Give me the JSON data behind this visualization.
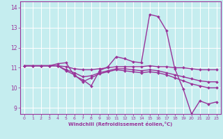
{
  "xlabel": "Windchill (Refroidissement éolien,°C)",
  "xlim": [
    -0.5,
    23.5
  ],
  "ylim": [
    8.7,
    14.3
  ],
  "yticks": [
    9,
    10,
    11,
    12,
    13,
    14
  ],
  "xticks": [
    0,
    1,
    2,
    3,
    4,
    5,
    6,
    7,
    8,
    9,
    10,
    11,
    12,
    13,
    14,
    15,
    16,
    17,
    18,
    19,
    20,
    21,
    22,
    23
  ],
  "bg_color": "#c5edef",
  "line_color": "#993399",
  "grid_color": "#aadddd",
  "line_width": 1.0,
  "marker": "D",
  "marker_size": 2.0,
  "series": [
    [
      11.1,
      11.1,
      11.1,
      11.1,
      11.2,
      11.25,
      10.6,
      10.4,
      10.1,
      10.85,
      11.05,
      11.55,
      11.45,
      11.3,
      11.25,
      13.65,
      13.55,
      12.85,
      10.95,
      9.95,
      8.7,
      9.35,
      9.2,
      9.3
    ],
    [
      11.1,
      11.1,
      11.1,
      11.1,
      11.1,
      11.05,
      10.95,
      10.9,
      10.9,
      10.95,
      11.0,
      11.05,
      11.05,
      11.05,
      11.05,
      11.1,
      11.05,
      11.05,
      11.0,
      11.0,
      10.95,
      10.9,
      10.9,
      10.9
    ],
    [
      11.1,
      11.1,
      11.1,
      11.1,
      11.1,
      10.9,
      10.75,
      10.55,
      10.6,
      10.75,
      10.85,
      10.95,
      10.95,
      10.9,
      10.85,
      10.9,
      10.85,
      10.75,
      10.65,
      10.55,
      10.45,
      10.35,
      10.3,
      10.3
    ],
    [
      11.1,
      11.1,
      11.1,
      11.1,
      11.1,
      10.85,
      10.65,
      10.3,
      10.5,
      10.7,
      10.8,
      10.9,
      10.85,
      10.8,
      10.75,
      10.8,
      10.75,
      10.65,
      10.5,
      10.35,
      10.2,
      10.1,
      10.0,
      10.0
    ]
  ]
}
